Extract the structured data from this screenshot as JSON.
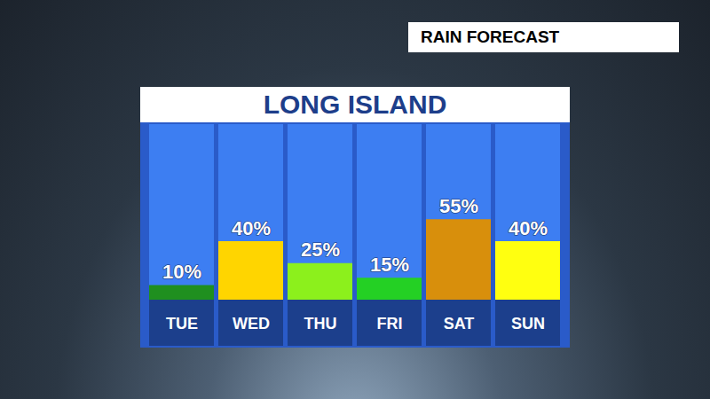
{
  "chart_data": {
    "type": "bar",
    "title": "LONG ISLAND",
    "subtitle": "RAIN FORECAST",
    "categories": [
      "TUE",
      "WED",
      "THU",
      "FRI",
      "SAT",
      "SUN"
    ],
    "values": [
      10,
      40,
      25,
      15,
      55,
      40
    ],
    "value_labels": [
      "10%",
      "40%",
      "25%",
      "15%",
      "55%",
      "40%"
    ],
    "colors": [
      "#1f8f1f",
      "#ffd500",
      "#8cf01c",
      "#24d024",
      "#d88f0c",
      "#ffff10"
    ],
    "ylim": [
      0,
      120
    ],
    "data_labels": true,
    "tick_labels": "x",
    "grid": false
  }
}
